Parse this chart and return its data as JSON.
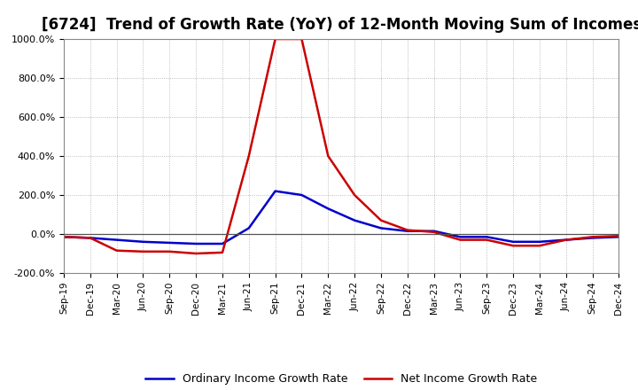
{
  "title": "[6724]  Trend of Growth Rate (YoY) of 12-Month Moving Sum of Incomes",
  "title_fontsize": 12,
  "ylim": [
    -200,
    1000
  ],
  "yticks": [
    -200,
    0,
    200,
    400,
    600,
    800,
    1000
  ],
  "ytick_labels": [
    "-200.0%",
    "0.0%",
    "200.0%",
    "400.0%",
    "600.0%",
    "800.0%",
    "1000.0%"
  ],
  "legend_labels": [
    "Ordinary Income Growth Rate",
    "Net Income Growth Rate"
  ],
  "legend_colors": [
    "#0000cc",
    "#cc0000"
  ],
  "background_color": "#ffffff",
  "grid_color": "#aaaaaa",
  "x_labels": [
    "Sep-19",
    "Dec-19",
    "Mar-20",
    "Jun-20",
    "Sep-20",
    "Dec-20",
    "Mar-21",
    "Jun-21",
    "Sep-21",
    "Dec-21",
    "Mar-22",
    "Jun-22",
    "Sep-22",
    "Dec-22",
    "Mar-23",
    "Jun-23",
    "Sep-23",
    "Dec-23",
    "Mar-24",
    "Jun-24",
    "Sep-24",
    "Dec-24"
  ],
  "ordinary_income": [
    -15,
    -20,
    -30,
    -40,
    -45,
    -50,
    -50,
    30,
    220,
    200,
    130,
    70,
    30,
    15,
    15,
    -15,
    -15,
    -40,
    -40,
    -30,
    -20,
    -15
  ],
  "net_income": [
    -15,
    -20,
    -85,
    -90,
    -90,
    -100,
    -95,
    400,
    1000,
    1000,
    400,
    200,
    70,
    20,
    10,
    -30,
    -30,
    -60,
    -60,
    -30,
    -15,
    -10
  ]
}
